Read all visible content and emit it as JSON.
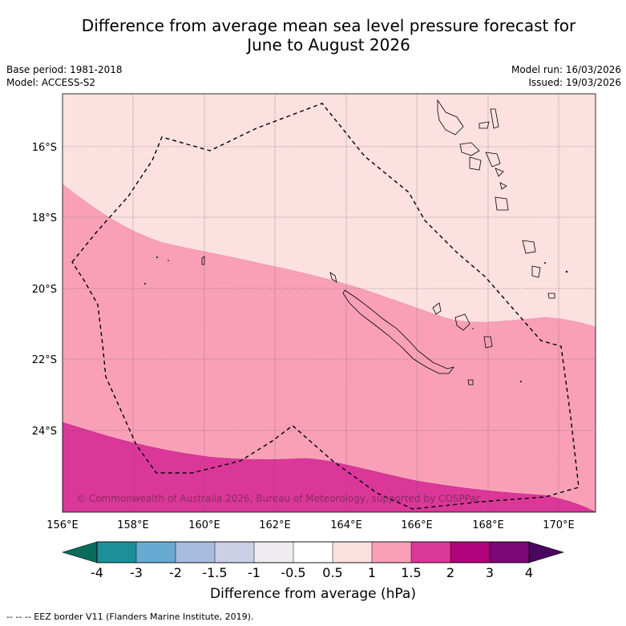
{
  "title_line1": "Difference from average mean sea level pressure forecast for",
  "title_line2": "June to August 2026",
  "meta": {
    "base_period": "Base period: 1981-2018",
    "model": "Model: ACCESS-S2",
    "model_run": "Model run: 16/03/2026",
    "issued": "Issued: 19/03/2026"
  },
  "lon_labels": [
    "156°E",
    "158°E",
    "160°E",
    "162°E",
    "164°E",
    "166°E",
    "168°E",
    "170°E"
  ],
  "lat_labels": [
    "16°S",
    "18°S",
    "20°S",
    "22°S",
    "24°S"
  ],
  "copyright": "© Commonwealth of Australia 2026, Bureau of Meteorology, supported by COSPPac",
  "colorbar": {
    "title": "Difference from average (hPa)",
    "labels": [
      "-4",
      "-3",
      "-2",
      "-1.5",
      "-1",
      "-0.5",
      "0.5",
      "1",
      "1.5",
      "2",
      "3",
      "4"
    ],
    "colors": [
      "#1b9099",
      "#67abd3",
      "#a8bcdd",
      "#ccd0e6",
      "#eeecf0",
      "#ffffff",
      "#fde0e0",
      "#f9a0b8",
      "#db3799",
      "#b0037c",
      "#7c0877"
    ],
    "under_color": "#0b6b5c",
    "over_color": "#4a0560"
  },
  "legend_footer": "--  --  -- EEZ border V11 (Flanders Marine Institute, 2019).",
  "fill_colors": {
    "light_pink": "#fde0e0",
    "medium_pink": "#f9a0b8",
    "magenta": "#db3799"
  }
}
